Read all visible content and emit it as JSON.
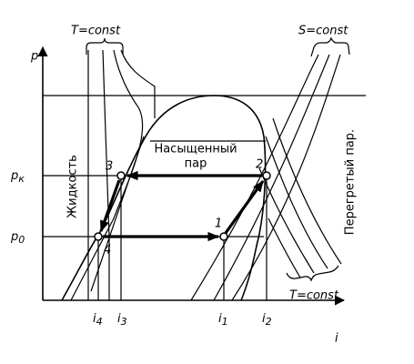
{
  "header": {
    "t_const_top": "T=const",
    "s_const": "S=const",
    "t_const_bottom": "T=const"
  },
  "axes": {
    "y": "p",
    "x": "i"
  },
  "pressure_labels": [
    {
      "main": "p",
      "sub": "к"
    },
    {
      "main": "p",
      "sub": "0"
    }
  ],
  "enthalpy_labels": [
    {
      "main": "i",
      "sub": "4"
    },
    {
      "main": "i",
      "sub": "3"
    },
    {
      "main": "i",
      "sub": "1"
    },
    {
      "main": "i",
      "sub": "2"
    }
  ],
  "points": [
    "1",
    "2",
    "3",
    "4"
  ],
  "regions": {
    "liquid": "Жидкость",
    "saturated_line1": "Насыщенный",
    "saturated_line2": "пар",
    "superheated": "Перегретый пар."
  }
}
